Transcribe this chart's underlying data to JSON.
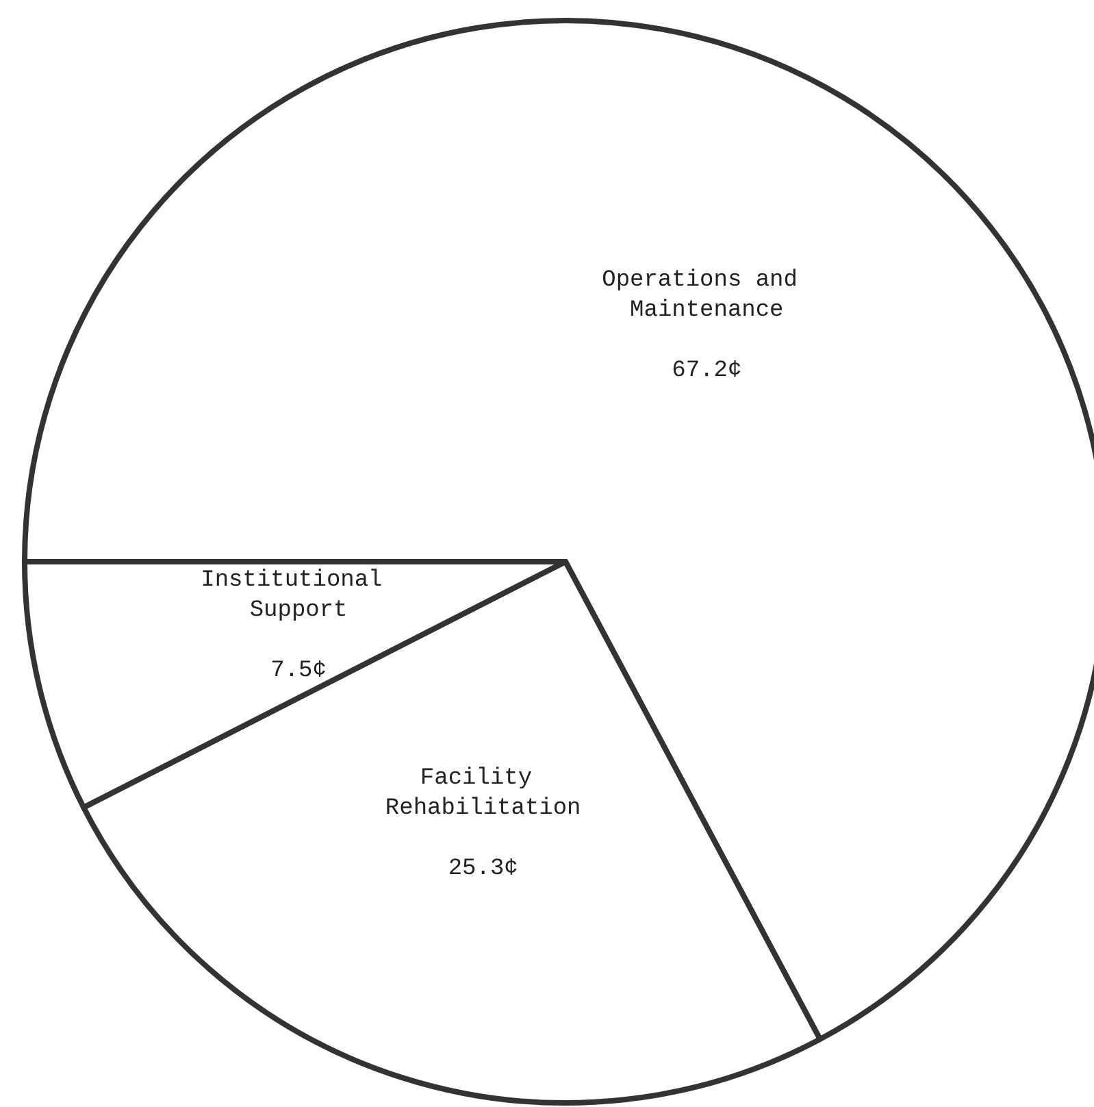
{
  "chart_data": {
    "type": "pie",
    "categories": [
      "Operations and Maintenance",
      "Facility Rehabilitation",
      "Institutional Support"
    ],
    "values": [
      67.2,
      25.3,
      7.5
    ],
    "value_labels": [
      "67.2¢",
      "25.3¢",
      "7.5¢"
    ],
    "colors": [
      "#ffffff",
      "#ffffff",
      "#ffffff"
    ],
    "legend": false
  }
}
